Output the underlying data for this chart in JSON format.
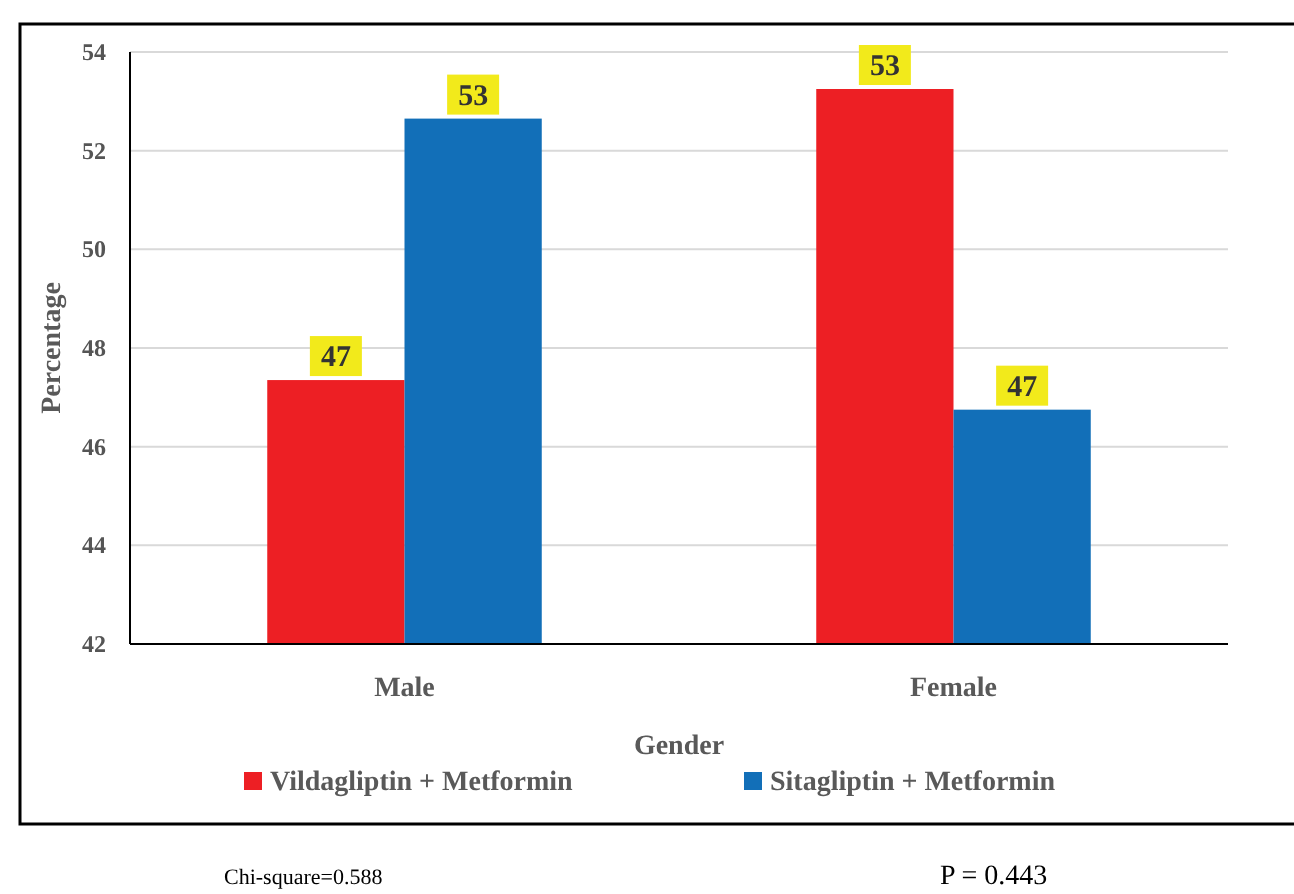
{
  "chart_data": {
    "type": "bar",
    "xlabel": "Gender",
    "ylabel": "Percentage",
    "categories": [
      "Male",
      "Female"
    ],
    "series": [
      {
        "name": "Vildagliptin + Metformin",
        "color": "#ed1f24",
        "values": [
          47.35,
          53.25
        ],
        "value_labels": [
          "47",
          "53"
        ]
      },
      {
        "name": "Sitagliptin + Metformin",
        "color": "#126fb8",
        "values": [
          52.65,
          46.75
        ],
        "value_labels": [
          "53",
          "47"
        ]
      }
    ],
    "ylim": [
      42,
      54
    ],
    "yticks": [
      42,
      44,
      46,
      48,
      50,
      52,
      54
    ],
    "grid": "y",
    "legend": "bottom",
    "annotations": [
      "Chi-square=0.588",
      "P = 0.443"
    ]
  }
}
